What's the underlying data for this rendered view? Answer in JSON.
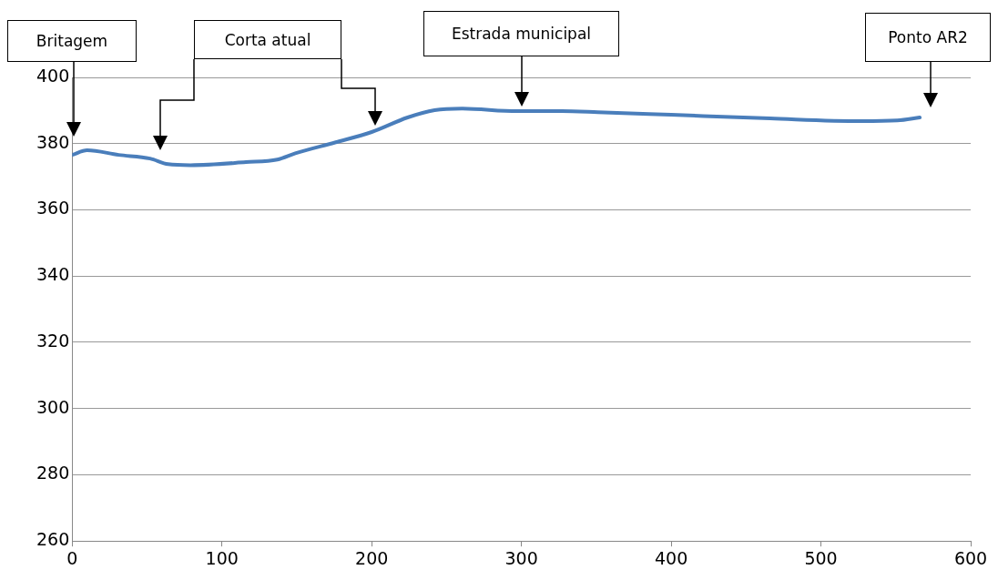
{
  "chart_data": {
    "type": "line",
    "x": [
      0,
      10,
      31,
      52,
      64,
      79,
      116,
      137,
      149,
      176,
      200,
      224,
      242,
      260,
      297,
      327,
      351,
      400,
      466,
      527,
      551,
      566
    ],
    "series": [
      {
        "color": "#4a7ebb",
        "values": [
          376.6,
          378,
          376.6,
          375.5,
          373.8,
          373.5,
          374.4,
          375.2,
          377.1,
          380.4,
          383.5,
          387.9,
          390.1,
          390.6,
          389.8,
          389.8,
          389.5,
          388.7,
          387.6,
          386.8,
          387,
          387.9
        ]
      }
    ],
    "xlim": [
      0,
      600
    ],
    "xticks": [
      0,
      100,
      200,
      300,
      400,
      500,
      600
    ],
    "ylim": [
      260,
      400
    ],
    "yticks": [
      260,
      280,
      300,
      320,
      340,
      360,
      380,
      400
    ],
    "grid": "y",
    "legend": false,
    "marker": "none",
    "line_style": "solid",
    "annotations": [
      "Britagem",
      "Corta atual",
      "Estrada municipal",
      "Ponto AR2"
    ]
  }
}
